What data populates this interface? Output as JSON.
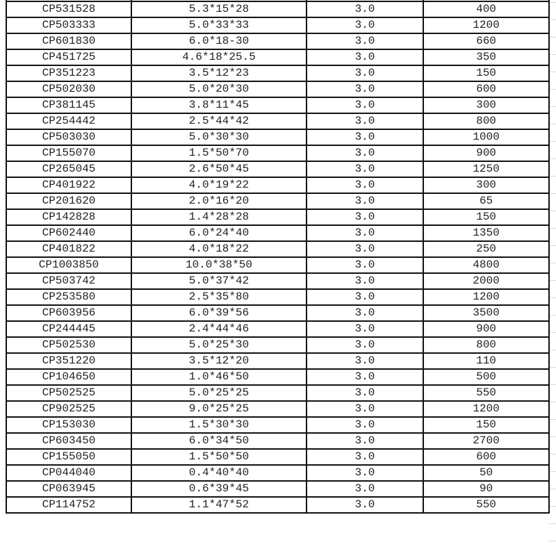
{
  "table": {
    "rows": [
      [
        "CP531528",
        "5.3*15*28",
        "3.0",
        "400"
      ],
      [
        "CP503333",
        "5.0*33*33",
        "3.0",
        "1200"
      ],
      [
        "CP601830",
        "6.0*18-30",
        "3.0",
        "660"
      ],
      [
        "CP451725",
        "4.6*18*25.5",
        "3.0",
        "350"
      ],
      [
        "CP351223",
        "3.5*12*23",
        "3.0",
        "150"
      ],
      [
        "CP502030",
        "5.0*20*30",
        "3.0",
        "600"
      ],
      [
        "CP381145",
        "3.8*11*45",
        "3.0",
        "300"
      ],
      [
        "CP254442",
        "2.5*44*42",
        "3.0",
        "800"
      ],
      [
        "CP503030",
        "5.0*30*30",
        "3.0",
        "1000"
      ],
      [
        "CP155070",
        "1.5*50*70",
        "3.0",
        "900"
      ],
      [
        "CP265045",
        "2.6*50*45",
        "3.0",
        "1250"
      ],
      [
        "CP401922",
        "4.0*19*22",
        "3.0",
        "300"
      ],
      [
        "CP201620",
        "2.0*16*20",
        "3.0",
        "65"
      ],
      [
        "CP142828",
        "1.4*28*28",
        "3.0",
        "150"
      ],
      [
        "CP602440",
        "6.0*24*40",
        "3.0",
        "1350"
      ],
      [
        "CP401822",
        "4.0*18*22",
        "3.0",
        "250"
      ],
      [
        "CP1003850",
        "10.0*38*50",
        "3.0",
        "4800"
      ],
      [
        "CP503742",
        "5.0*37*42",
        "3.0",
        "2000"
      ],
      [
        "CP253580",
        "2.5*35*80",
        "3.0",
        "1200"
      ],
      [
        "CP603956",
        "6.0*39*56",
        "3.0",
        "3500"
      ],
      [
        "CP244445",
        "2.4*44*46",
        "3.0",
        "900"
      ],
      [
        "CP502530",
        "5.0*25*30",
        "3.0",
        "800"
      ],
      [
        "CP351220",
        "3.5*12*20",
        "3.0",
        "110"
      ],
      [
        "CP104650",
        "1.0*46*50",
        "3.0",
        "500"
      ],
      [
        "CP502525",
        "5.0*25*25",
        "3.0",
        "550"
      ],
      [
        "CP902525",
        "9.0*25*25",
        "3.0",
        "1200"
      ],
      [
        "CP153030",
        "1.5*30*30",
        "3.0",
        "150"
      ],
      [
        "CP603450",
        "6.0*34*50",
        "3.0",
        "2700"
      ],
      [
        "CP155050",
        "1.5*50*50",
        "3.0",
        "600"
      ],
      [
        "CP044040",
        "0.4*40*40",
        "3.0",
        "50"
      ],
      [
        "CP063945",
        "0.6*39*45",
        "3.0",
        "90"
      ],
      [
        "CP114752",
        "1.1*47*52",
        "3.0",
        "550"
      ]
    ]
  }
}
